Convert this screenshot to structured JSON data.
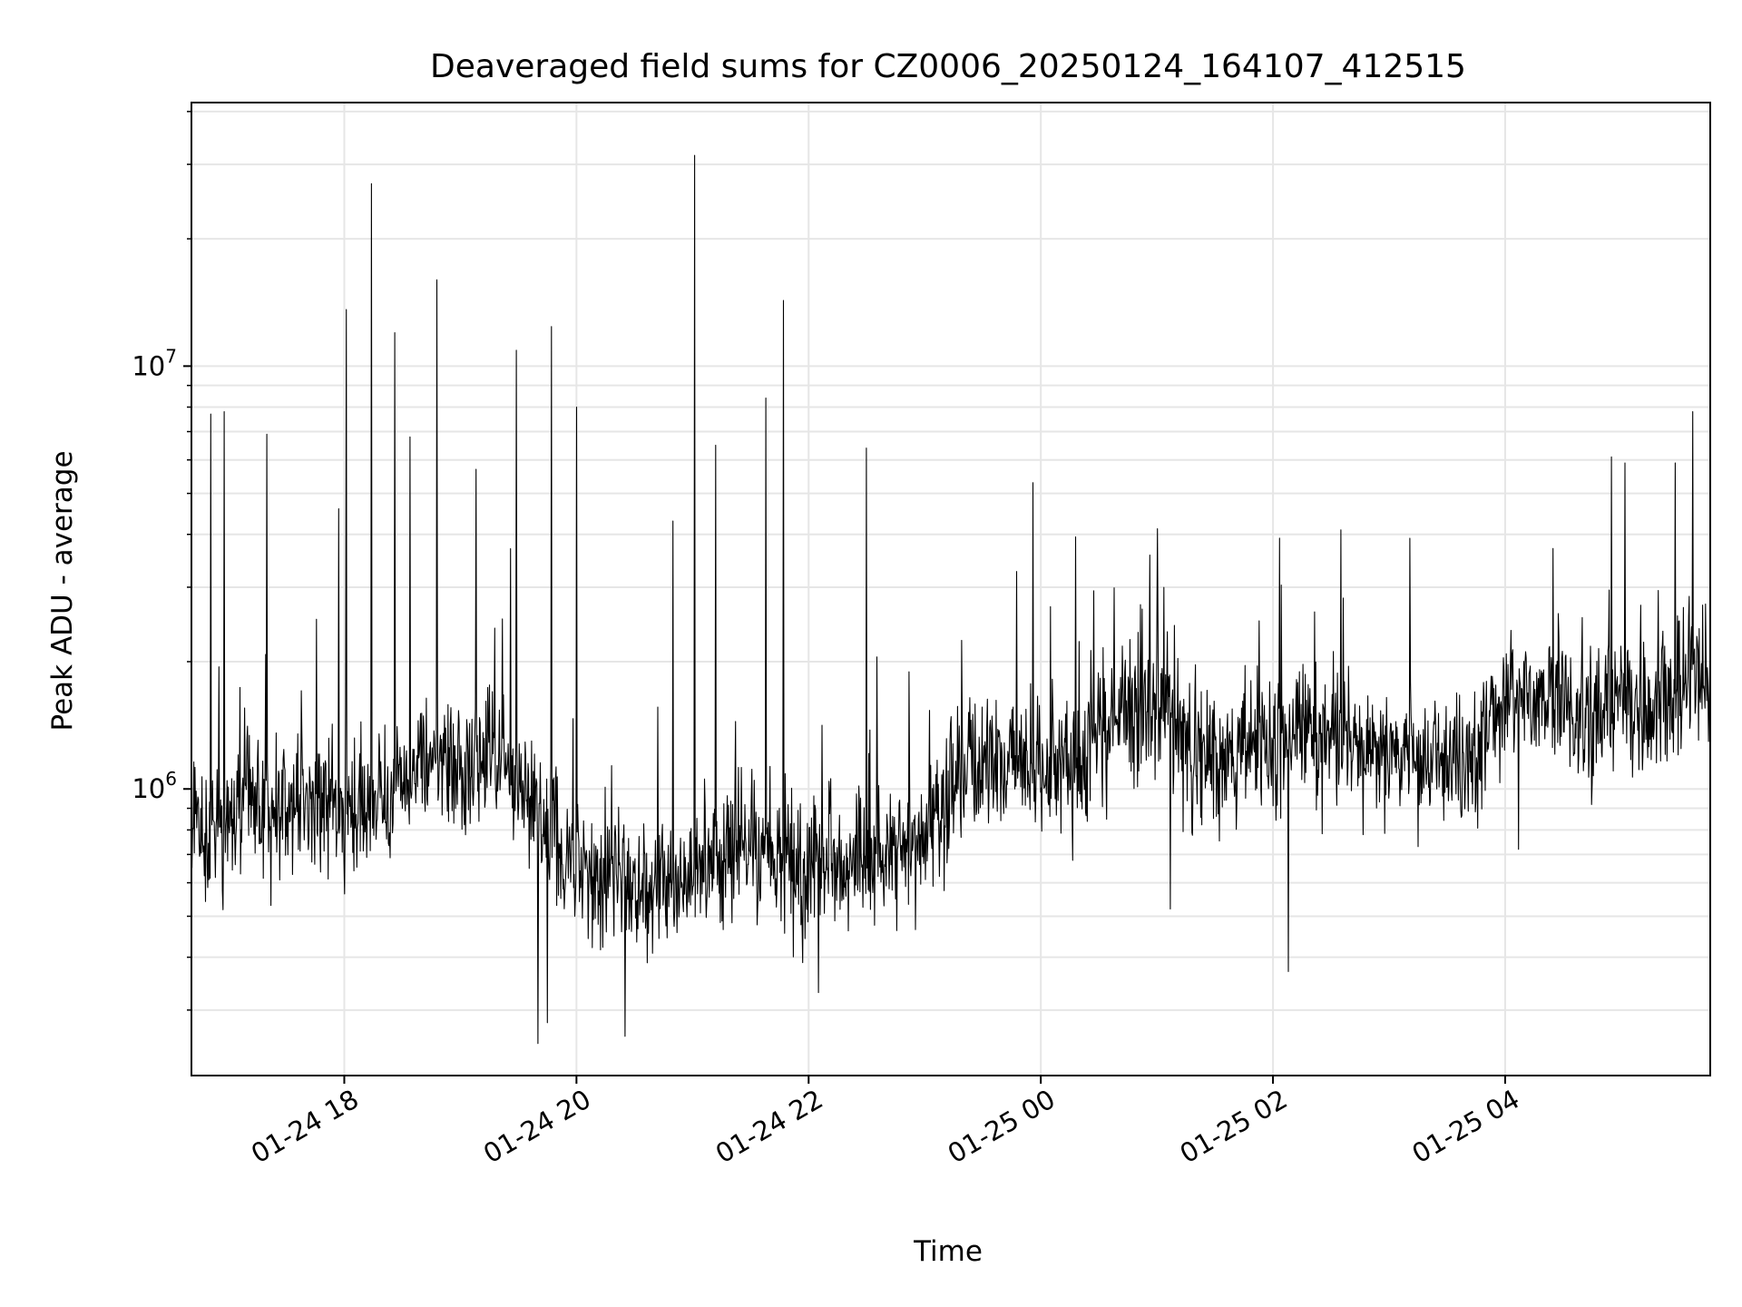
{
  "chart_data": {
    "type": "line",
    "title": "Deaveraged field sums for CZ0006_20250124_164107_412515",
    "xlabel": "Time",
    "ylabel": "Peak ADU - average",
    "yscale": "log",
    "grid": true,
    "legend": "none",
    "line_color": "#000000",
    "x_range": [
      "2025-01-24 16:41",
      "2025-01-25 05:46"
    ],
    "ylim": [
      210000,
      42000000
    ],
    "x_ticks": [
      {
        "t": "2025-01-24 18:00",
        "label": "01-24 18"
      },
      {
        "t": "2025-01-24 20:00",
        "label": "01-24 20"
      },
      {
        "t": "2025-01-24 22:00",
        "label": "01-24 22"
      },
      {
        "t": "2025-01-25 00:00",
        "label": "01-25 00"
      },
      {
        "t": "2025-01-25 02:00",
        "label": "01-25 02"
      },
      {
        "t": "2025-01-25 04:00",
        "label": "01-25 04"
      }
    ],
    "y_ticks": [
      {
        "value": 1000000,
        "base": "10",
        "exp": "6"
      },
      {
        "value": 10000000,
        "base": "10",
        "exp": "7"
      }
    ],
    "series": [
      {
        "x": [
          "2025-01-24 16:41",
          "2025-01-24 17:00",
          "2025-01-24 17:20",
          "2025-01-24 17:40",
          "2025-01-24 18:00",
          "2025-01-24 18:20",
          "2025-01-24 18:40",
          "2025-01-24 19:00",
          "2025-01-24 19:20",
          "2025-01-24 19:40",
          "2025-01-24 20:00",
          "2025-01-24 20:20",
          "2025-01-24 20:40",
          "2025-01-24 21:00",
          "2025-01-24 21:20",
          "2025-01-24 21:40",
          "2025-01-24 22:00",
          "2025-01-24 22:20",
          "2025-01-24 22:40",
          "2025-01-24 23:00",
          "2025-01-24 23:20",
          "2025-01-24 23:40",
          "2025-01-25 00:00",
          "2025-01-25 00:20",
          "2025-01-25 00:40",
          "2025-01-25 01:00",
          "2025-01-25 01:20",
          "2025-01-25 01:40",
          "2025-01-25 02:00",
          "2025-01-25 02:20",
          "2025-01-25 02:40",
          "2025-01-25 03:00",
          "2025-01-25 03:20",
          "2025-01-25 03:40",
          "2025-01-25 04:00",
          "2025-01-25 04:20",
          "2025-01-25 04:40",
          "2025-01-25 05:00",
          "2025-01-25 05:20",
          "2025-01-25 05:46"
        ],
        "y": [
          800000,
          850000,
          900000,
          950000,
          900000,
          950000,
          1200000,
          1100000,
          1200000,
          850000,
          650000,
          650000,
          600000,
          650000,
          700000,
          700000,
          650000,
          700000,
          650000,
          750000,
          1100000,
          1200000,
          1100000,
          1150000,
          1600000,
          1600000,
          1200000,
          1250000,
          1300000,
          1350000,
          1250000,
          1200000,
          1200000,
          1100000,
          1550000,
          1700000,
          1500000,
          1600000,
          1550000,
          1900000
        ],
        "spikes_high": [
          {
            "t": "2025-01-24 16:51",
            "v": 7700000
          },
          {
            "t": "2025-01-24 16:58",
            "v": 7800000
          },
          {
            "t": "2025-01-24 17:20",
            "v": 6900000
          },
          {
            "t": "2025-01-24 17:57",
            "v": 4600000
          },
          {
            "t": "2025-01-24 18:01",
            "v": 13600000
          },
          {
            "t": "2025-01-24 18:14",
            "v": 27000000
          },
          {
            "t": "2025-01-24 18:26",
            "v": 12000000
          },
          {
            "t": "2025-01-24 18:34",
            "v": 6800000
          },
          {
            "t": "2025-01-24 18:48",
            "v": 16000000
          },
          {
            "t": "2025-01-24 19:08",
            "v": 5700000
          },
          {
            "t": "2025-01-24 19:26",
            "v": 3700000
          },
          {
            "t": "2025-01-24 19:29",
            "v": 10900000
          },
          {
            "t": "2025-01-24 19:47",
            "v": 12400000
          },
          {
            "t": "2025-01-24 20:00",
            "v": 8000000
          },
          {
            "t": "2025-01-24 20:50",
            "v": 4300000
          },
          {
            "t": "2025-01-24 21:01",
            "v": 31500000
          },
          {
            "t": "2025-01-24 21:12",
            "v": 6500000
          },
          {
            "t": "2025-01-24 21:38",
            "v": 8400000
          },
          {
            "t": "2025-01-24 21:47",
            "v": 14300000
          },
          {
            "t": "2025-01-24 22:30",
            "v": 6400000
          },
          {
            "t": "2025-01-24 23:56",
            "v": 5300000
          },
          {
            "t": "2025-01-25 02:35",
            "v": 4100000
          },
          {
            "t": "2025-01-25 04:55",
            "v": 6100000
          },
          {
            "t": "2025-01-25 05:02",
            "v": 5900000
          },
          {
            "t": "2025-01-25 05:28",
            "v": 5900000
          },
          {
            "t": "2025-01-25 05:37",
            "v": 7800000
          }
        ],
        "spikes_low": [
          {
            "t": "2025-01-24 19:40",
            "v": 250000
          },
          {
            "t": "2025-01-24 19:45",
            "v": 280000
          },
          {
            "t": "2025-01-24 20:25",
            "v": 260000
          },
          {
            "t": "2025-01-24 22:05",
            "v": 330000
          },
          {
            "t": "2025-01-25 01:07",
            "v": 520000
          },
          {
            "t": "2025-01-25 02:08",
            "v": 370000
          },
          {
            "t": "2025-01-25 04:07",
            "v": 720000
          }
        ]
      }
    ]
  }
}
